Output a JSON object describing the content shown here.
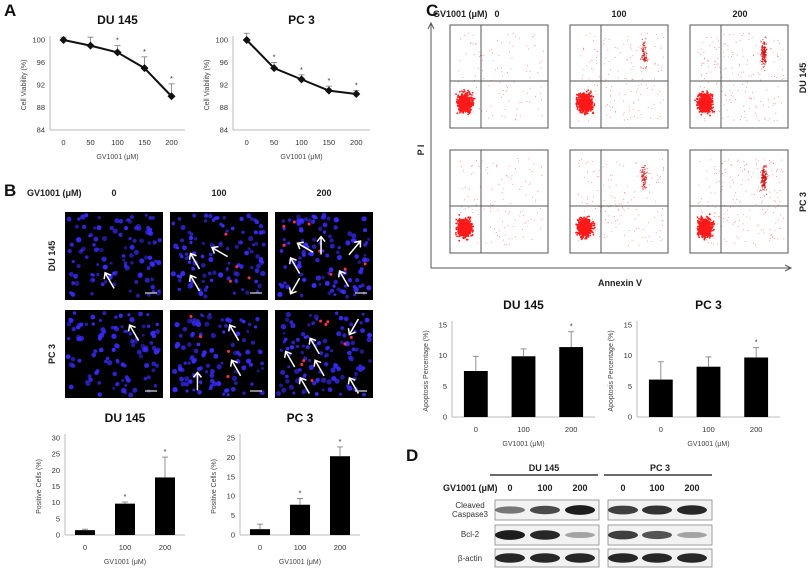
{
  "panel_labels": {
    "a": "A",
    "b": "B",
    "c": "C",
    "d": "D"
  },
  "treatment_label": "GV1001 (μM)",
  "doses_3": [
    "0",
    "100",
    "200"
  ],
  "cell_lines": [
    "DU 145",
    "PC 3"
  ],
  "flow": {
    "y_axis": "P I",
    "x_axis": "Annexin V",
    "dot_color": "#ff1a1a"
  },
  "microscopy": {
    "nucleus_color": "#3a2cff",
    "positive_color": "#ff3050",
    "arrow_color": "#ffffff"
  },
  "western": {
    "rows": [
      "Cleaved Caspase3",
      "Bcl-2",
      "β-actin"
    ],
    "band_intensity": {
      "DU 145": [
        [
          0.55,
          0.75,
          0.95
        ],
        [
          0.95,
          0.9,
          0.35
        ],
        [
          0.9,
          0.9,
          0.9
        ]
      ],
      "PC 3": [
        [
          0.8,
          0.85,
          0.9
        ],
        [
          0.8,
          0.7,
          0.35
        ],
        [
          0.9,
          0.9,
          0.9
        ]
      ]
    }
  },
  "chart_data": [
    {
      "id": "A-DU145",
      "type": "line",
      "title": "DU 145",
      "xlabel": "GV1001 (μM)",
      "ylabel": "Cell Viability (%)",
      "categories": [
        "0",
        "50",
        "100",
        "150",
        "200"
      ],
      "values": [
        100,
        99,
        97.8,
        95,
        90
      ],
      "errors": [
        0.5,
        1.5,
        1.2,
        2.0,
        2.2
      ],
      "significant": [
        false,
        false,
        true,
        true,
        true
      ],
      "ylim": [
        84,
        100
      ],
      "yticks": [
        84,
        88,
        92,
        96,
        100
      ],
      "grid": false
    },
    {
      "id": "A-PC3",
      "type": "line",
      "title": "PC 3",
      "xlabel": "GV1001 (μM)",
      "ylabel": "Cell Viability (%)",
      "categories": [
        "0",
        "50",
        "100",
        "150",
        "200"
      ],
      "values": [
        100,
        95,
        93,
        91,
        90.4
      ],
      "errors": [
        1.2,
        1.0,
        0.8,
        0.8,
        0.6
      ],
      "significant": [
        false,
        true,
        true,
        true,
        true
      ],
      "ylim": [
        84,
        100
      ],
      "yticks": [
        84,
        88,
        92,
        96,
        100
      ],
      "grid": false
    },
    {
      "id": "B-DU145",
      "type": "bar",
      "title": "DU 145",
      "xlabel": "GV1001 (μM)",
      "ylabel": "Positive Cells (%)",
      "categories": [
        "0",
        "100",
        "200"
      ],
      "values": [
        1.5,
        9.7,
        17.8
      ],
      "errors": [
        0.3,
        0.5,
        6.3
      ],
      "significant": [
        false,
        true,
        true
      ],
      "ylim": [
        0,
        30
      ],
      "yticks": [
        0,
        5,
        10,
        15,
        20,
        25,
        30
      ],
      "grid": false
    },
    {
      "id": "B-PC3",
      "type": "bar",
      "title": "PC 3",
      "xlabel": "GV1001 (μM)",
      "ylabel": "Positive Cells (%)",
      "categories": [
        "0",
        "100",
        "200"
      ],
      "values": [
        1.5,
        7.8,
        20.3
      ],
      "errors": [
        1.3,
        1.6,
        2.4
      ],
      "significant": [
        false,
        true,
        true
      ],
      "ylim": [
        0,
        25
      ],
      "yticks": [
        0,
        5,
        10,
        15,
        20,
        25
      ],
      "grid": false
    },
    {
      "id": "C-DU145",
      "type": "bar",
      "title": "DU 145",
      "xlabel": "GV1001 (μM)",
      "ylabel": "Apoptosis Percentage (%)",
      "categories": [
        "0",
        "100",
        "200"
      ],
      "values": [
        7.5,
        9.9,
        11.4
      ],
      "errors": [
        2.4,
        1.2,
        2.5
      ],
      "significant": [
        false,
        false,
        true
      ],
      "ylim": [
        0,
        15
      ],
      "yticks": [
        0,
        5,
        10,
        15
      ],
      "grid": false
    },
    {
      "id": "C-PC3",
      "type": "bar",
      "title": "PC 3",
      "xlabel": "GV1001 (μM)",
      "ylabel": "Apoptosis Percentage (%)",
      "categories": [
        "0",
        "100",
        "200"
      ],
      "values": [
        6.1,
        8.2,
        9.7
      ],
      "errors": [
        2.9,
        1.6,
        1.6
      ],
      "significant": [
        false,
        false,
        true
      ],
      "ylim": [
        0,
        15
      ],
      "yticks": [
        0,
        5,
        10,
        15
      ],
      "grid": false
    }
  ]
}
